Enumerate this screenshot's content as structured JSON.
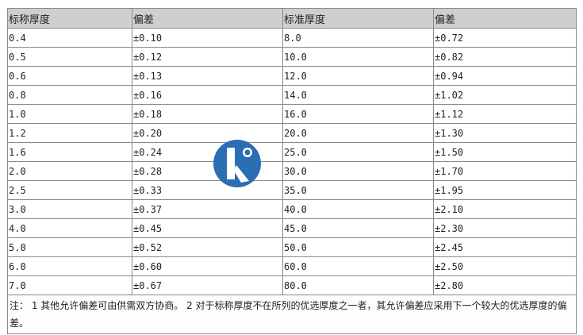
{
  "table": {
    "headers": [
      "标称厚度",
      "偏差",
      "标准厚度",
      "偏差"
    ],
    "rows": [
      [
        "0.4",
        "±0.10",
        "8.0",
        "±0.72"
      ],
      [
        "0.5",
        "±0.12",
        "10.0",
        "±0.82"
      ],
      [
        "0.6",
        "±0.13",
        "12.0",
        "±0.94"
      ],
      [
        "0.8",
        "±0.16",
        "14.0",
        "±1.02"
      ],
      [
        "1.0",
        "±0.18",
        "16.0",
        "±1.12"
      ],
      [
        "1.2",
        "±0.20",
        "20.0",
        "±1.30"
      ],
      [
        "1.6",
        "±0.24",
        "25.0",
        "±1.50"
      ],
      [
        "2.0",
        "±0.28",
        "30.0",
        "±1.70"
      ],
      [
        "2.5",
        "±0.33",
        "35.0",
        "±1.95"
      ],
      [
        "3.0",
        "±0.37",
        "40.0",
        "±2.10"
      ],
      [
        "4.0",
        "±0.45",
        "45.0",
        "±2.30"
      ],
      [
        "5.0",
        "±0.52",
        "50.0",
        "±2.45"
      ],
      [
        "6.0",
        "±0.60",
        "60.0",
        "±2.50"
      ],
      [
        "7.0",
        "±0.67",
        "80.0",
        "±2.80"
      ]
    ],
    "note": "  注：  1 其他允许偏差可由供需双方协商。  2 对于标称厚度不在所列的优选厚度之一者，其允许偏差应采用下一个较大的优选厚度的偏差。"
  },
  "colors": {
    "header_bg": "#cfcfcf",
    "border": "#8a8a8a",
    "logo": "#2b6db3"
  }
}
